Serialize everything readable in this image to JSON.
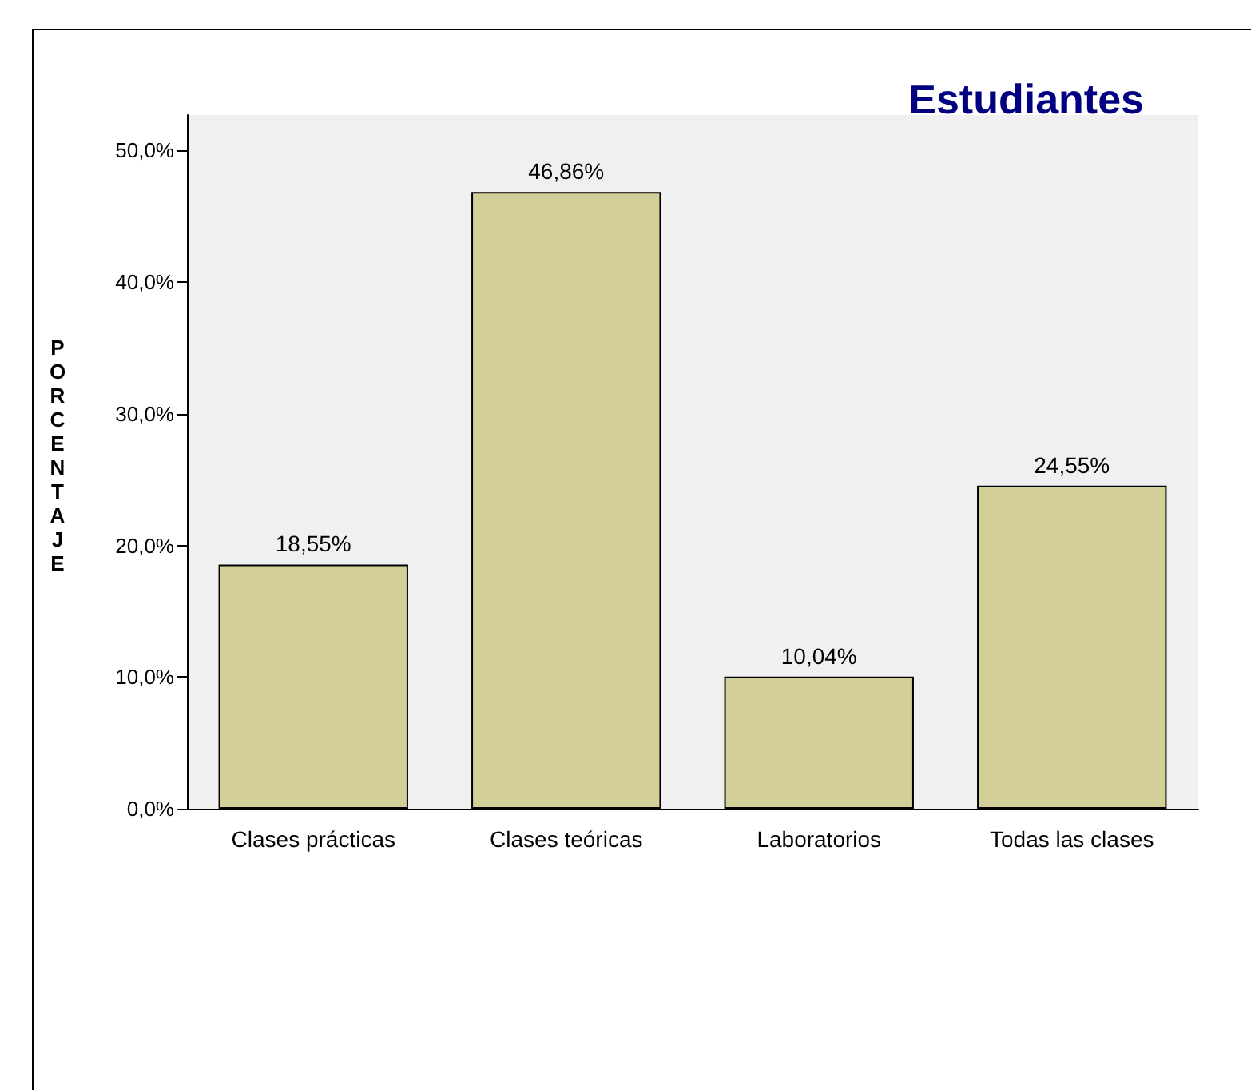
{
  "chart_data": {
    "type": "bar",
    "title": "Estudiantes",
    "ylabel": "PORCENTAJE",
    "categories": [
      "Clases prácticas",
      "Clases teóricas",
      "Laboratorios",
      "Todas las clases"
    ],
    "values": [
      18.55,
      46.86,
      10.04,
      24.55
    ],
    "value_labels": [
      "18,55%",
      "46,86%",
      "10,04%",
      "24,55%"
    ],
    "color": "#d3cf98",
    "ylim": [
      0,
      52.7
    ],
    "yticks": [
      {
        "value": 0,
        "label": "0,0%"
      },
      {
        "value": 10,
        "label": "10,0%"
      },
      {
        "value": 20,
        "label": "20,0%"
      },
      {
        "value": 30,
        "label": "30,0%"
      },
      {
        "value": 40,
        "label": "40,0%"
      },
      {
        "value": 50,
        "label": "50,0%"
      }
    ],
    "grid": false
  }
}
